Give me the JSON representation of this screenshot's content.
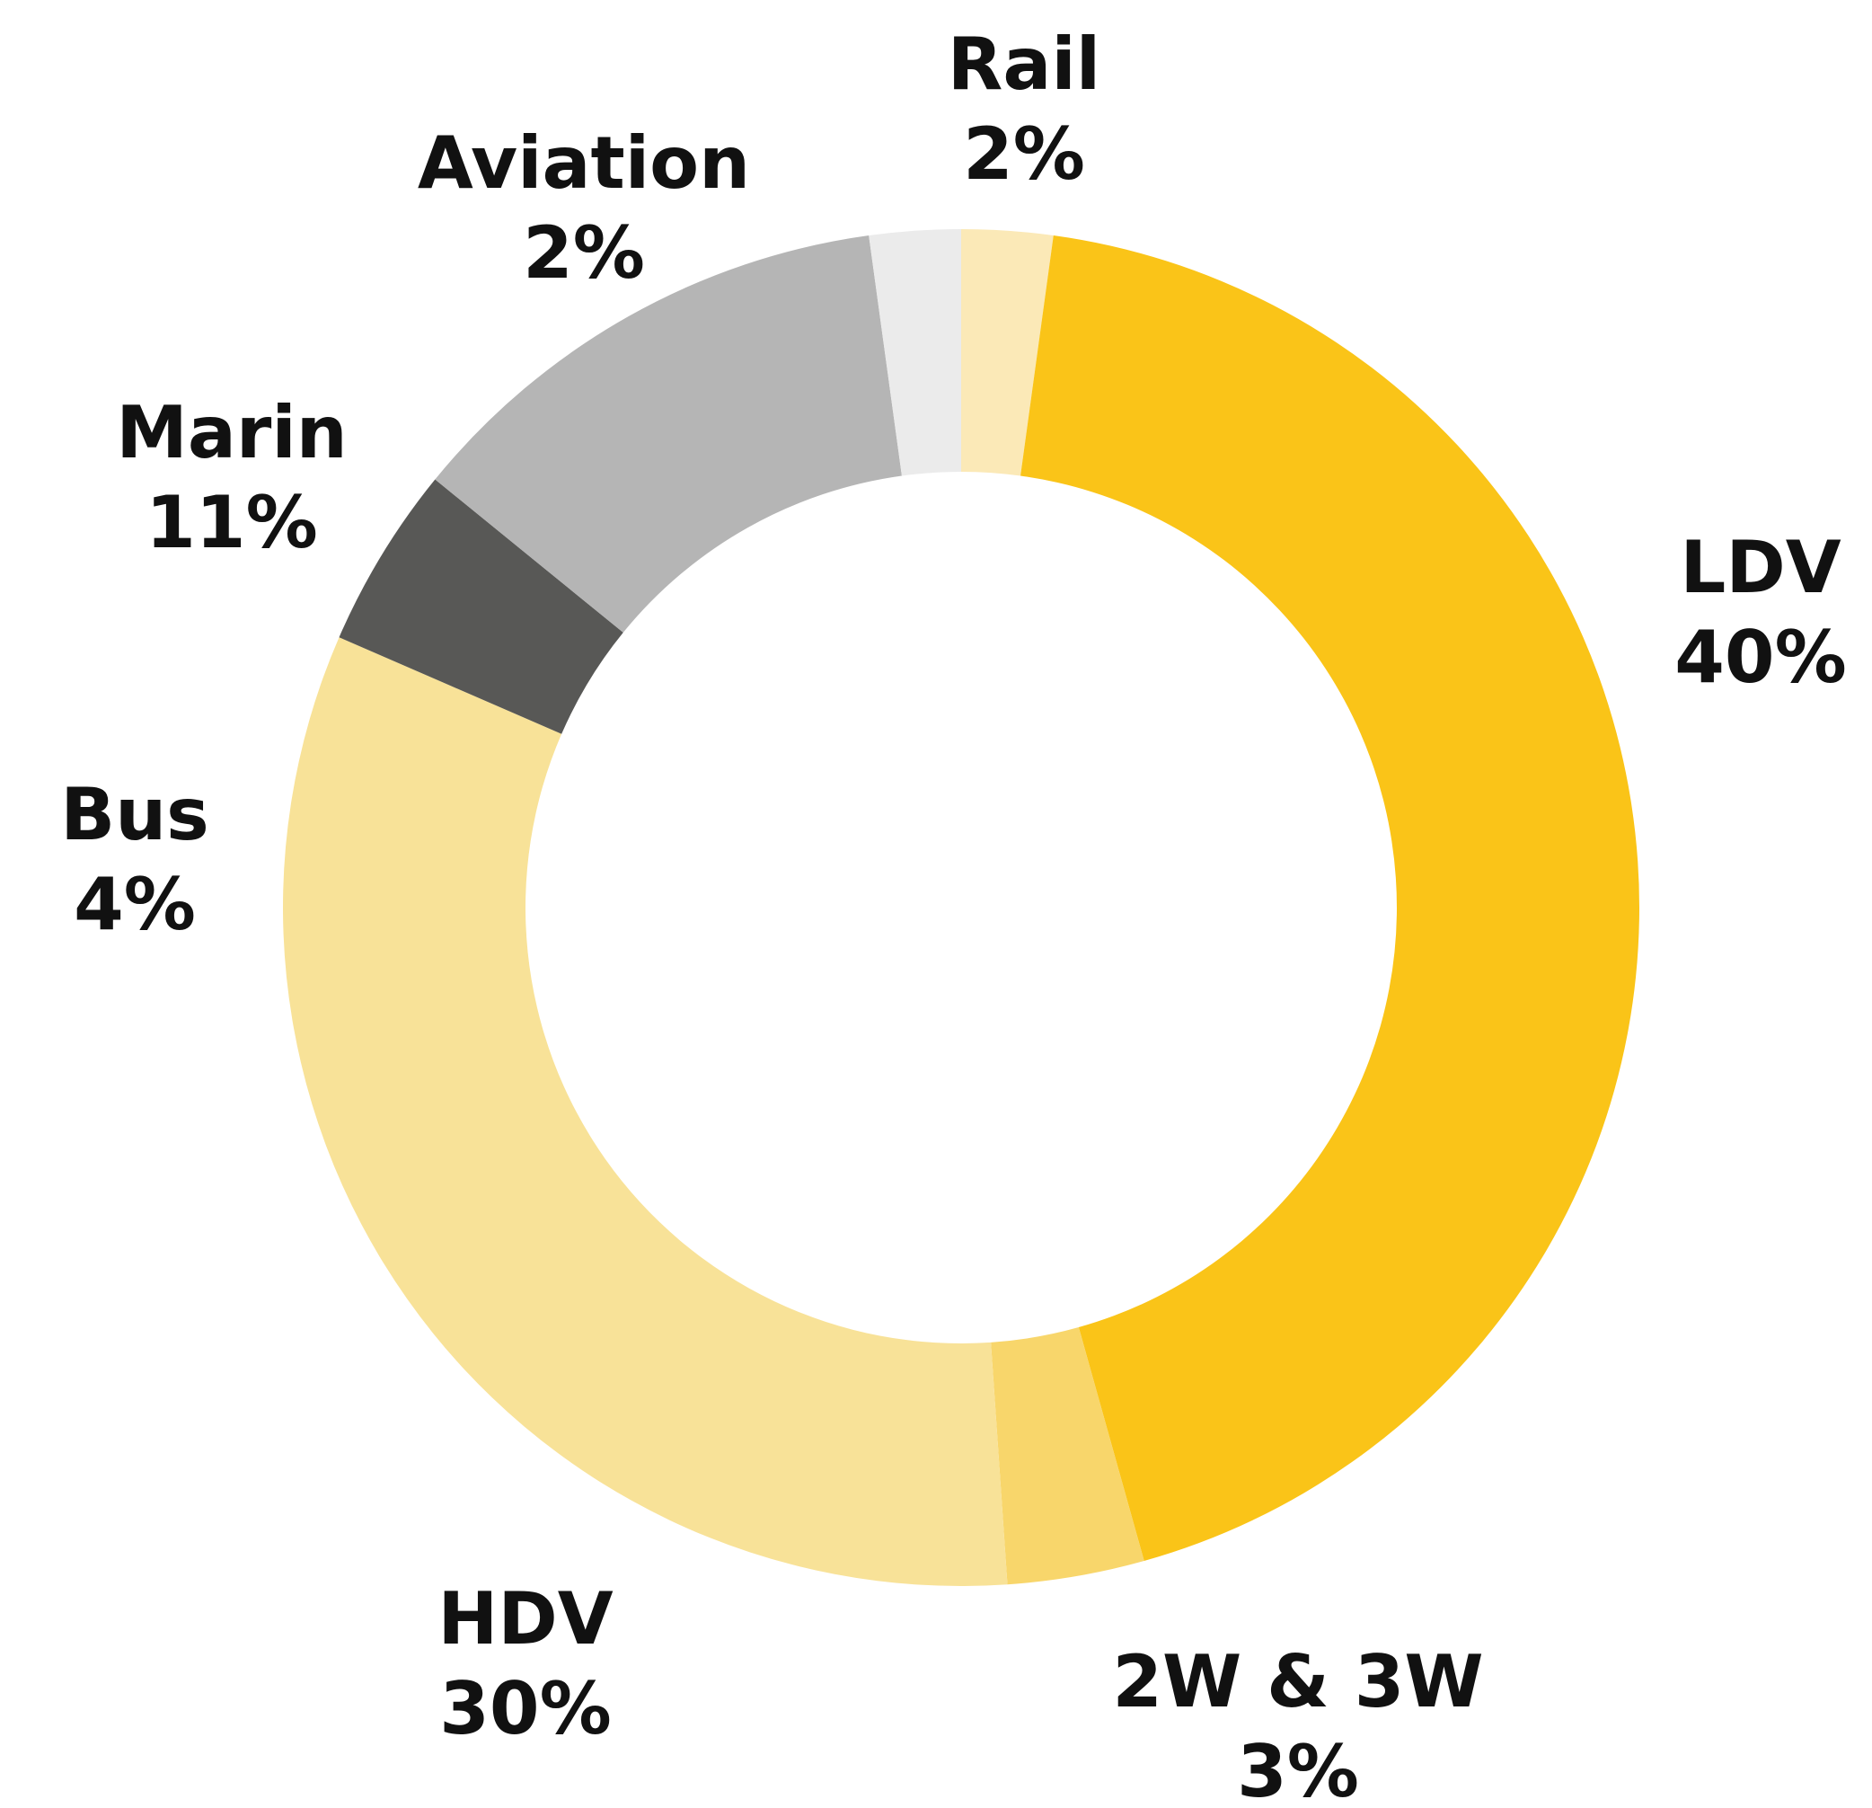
{
  "chart_data": {
    "type": "pie",
    "donut": true,
    "categories": [
      "Rail",
      "LDV",
      "2W & 3W",
      "HDV",
      "Bus",
      "Marin",
      "Aviation"
    ],
    "values": [
      2,
      40,
      3,
      30,
      4,
      11,
      2
    ],
    "value_labels": [
      "2%",
      "40%",
      "3%",
      "30%",
      "4%",
      "11%",
      "2%"
    ],
    "colors": [
      "#FBE9B7",
      "#FAC418",
      "#F8D66B",
      "#F8E298",
      "#585856",
      "#B5B5B5",
      "#EBEBEB"
    ],
    "start": "top, clockwise",
    "legend": "none (labels placed next to slices)"
  }
}
